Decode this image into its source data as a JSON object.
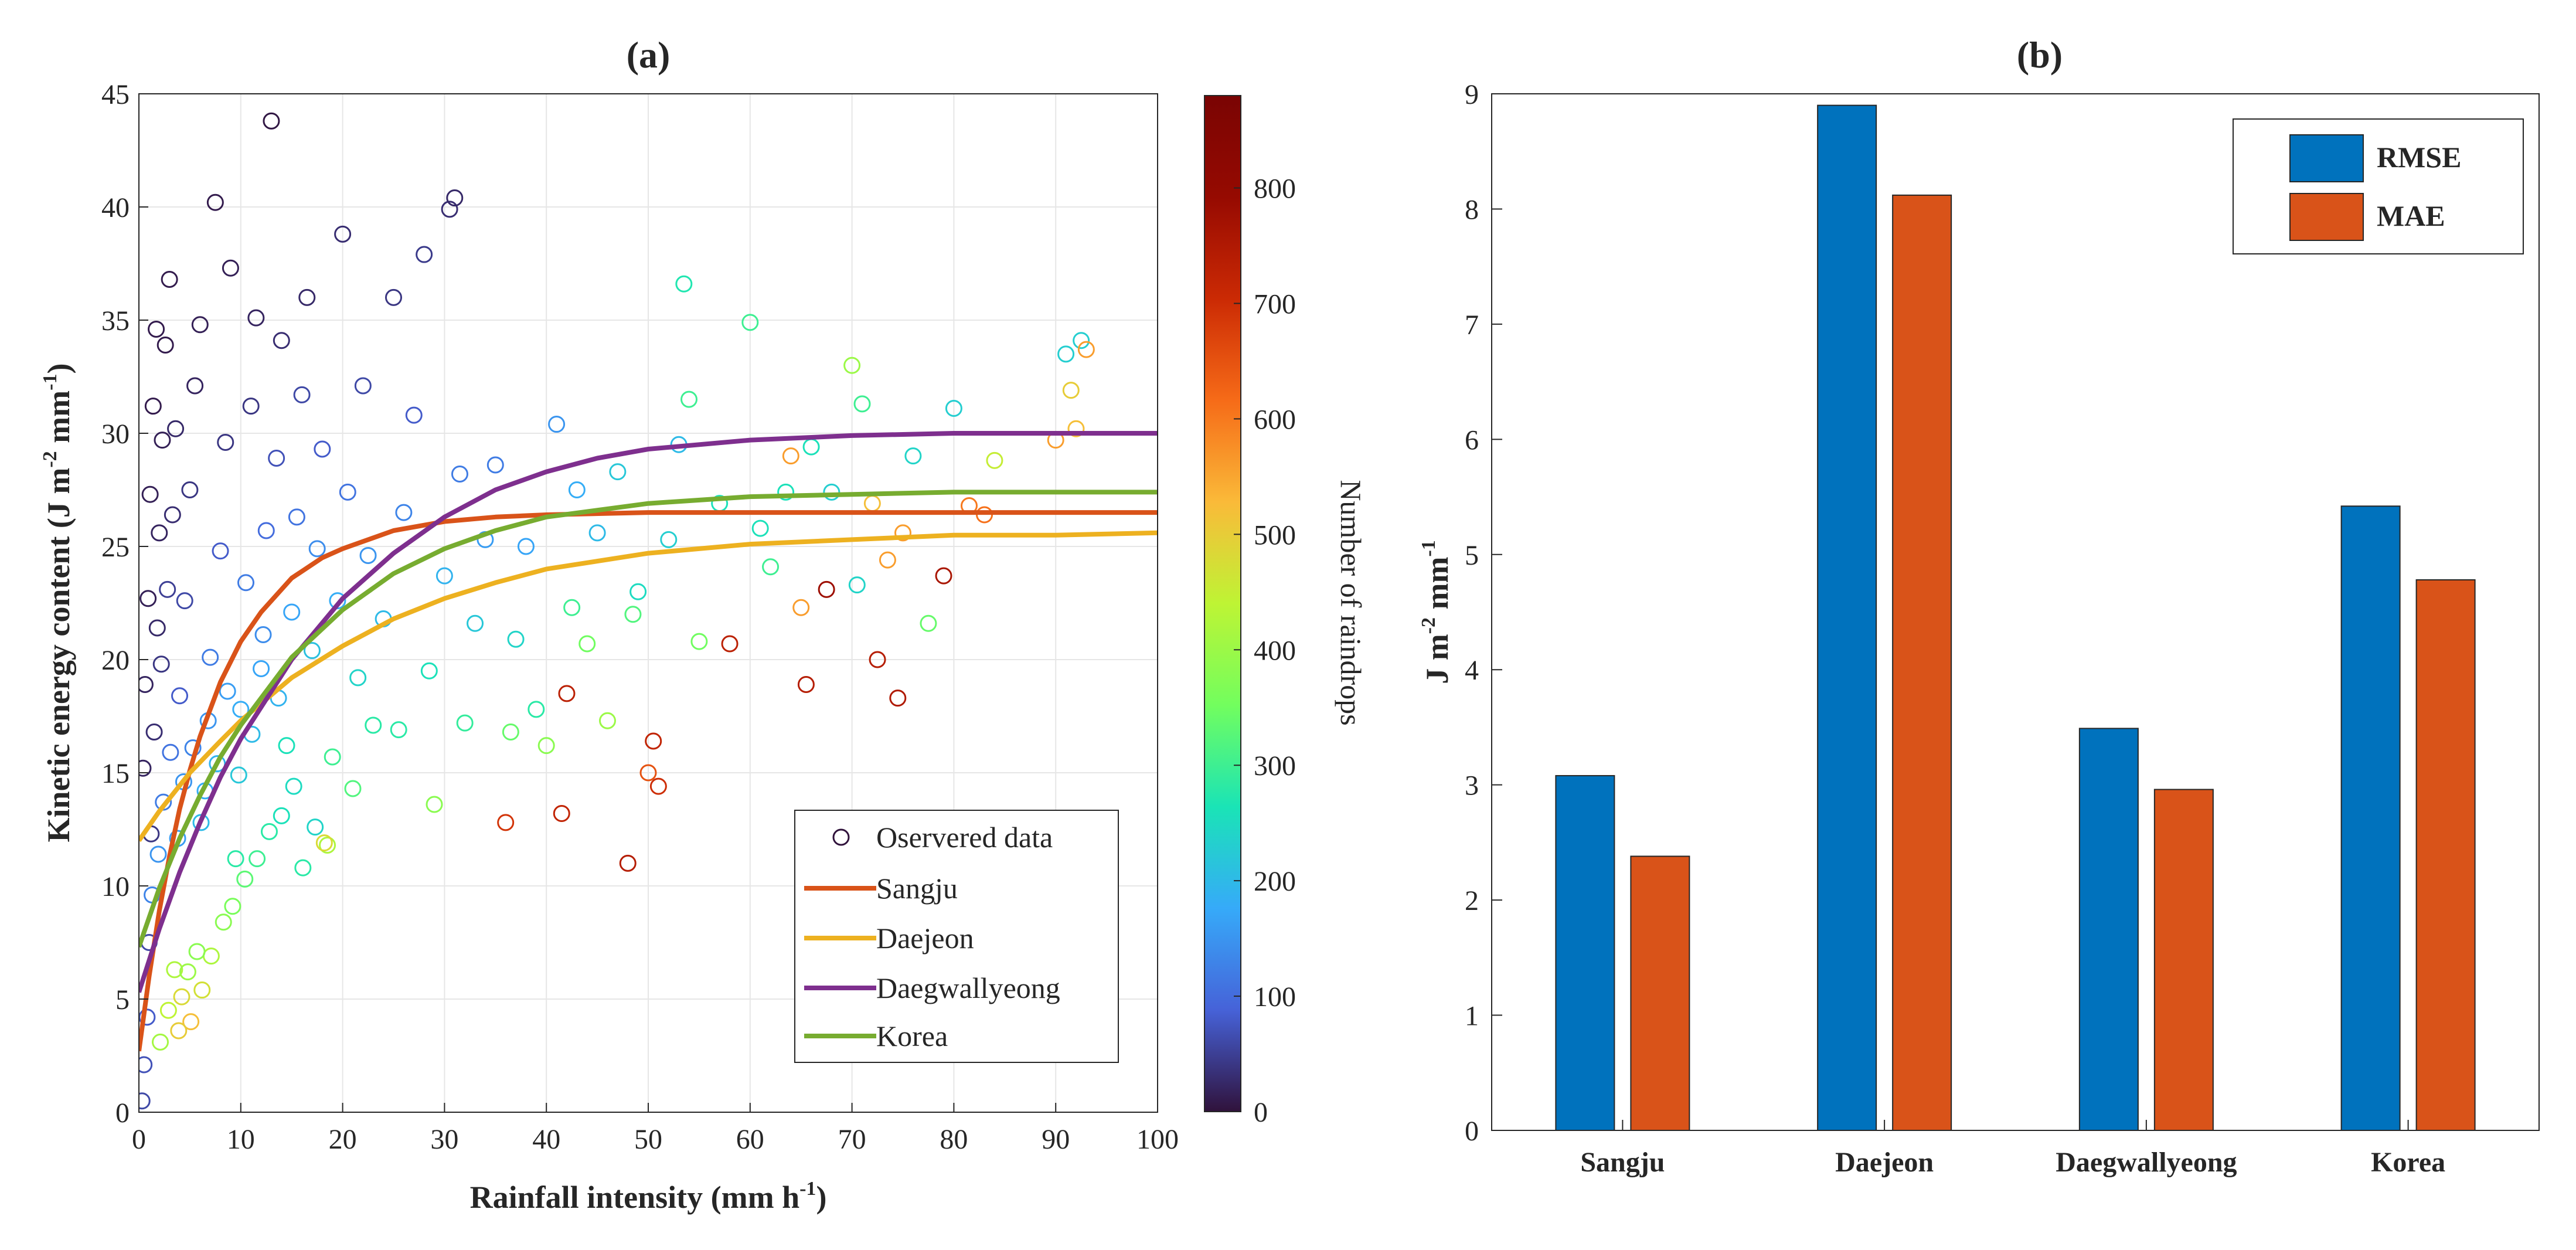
{
  "chart_data": [
    {
      "panel": "(a)",
      "type": "scatter",
      "title": "(a)",
      "xlabel": "Rainfall intensity  (mm h",
      "xlabel_sup": "-1",
      "xlabel_end": ")",
      "ylabel_parts": {
        "base": "Kinetic energy content (J m",
        "sup1": "-2",
        "mid": " mm",
        "sup2": "-1",
        "end": ")"
      },
      "xlim": [
        0,
        100
      ],
      "ylim": [
        0,
        45
      ],
      "xticks": [
        0,
        10,
        20,
        30,
        40,
        50,
        60,
        70,
        80,
        90,
        100
      ],
      "yticks": [
        0,
        5,
        10,
        15,
        20,
        25,
        30,
        35,
        40,
        45
      ],
      "grid": true,
      "legend_position": "bottom-right",
      "scatter": {
        "name": "Oservered data",
        "marker": "open-circle",
        "color_by": "Number of raindrops",
        "points": [
          [
            0.3,
            0.5,
            60
          ],
          [
            0.5,
            2.1,
            70
          ],
          [
            0.8,
            4.2,
            80
          ],
          [
            1.0,
            7.5,
            60
          ],
          [
            1.2,
            12.3,
            40
          ],
          [
            1.5,
            16.8,
            30
          ],
          [
            1.8,
            21.4,
            25
          ],
          [
            2.0,
            25.6,
            20
          ],
          [
            2.3,
            29.7,
            15
          ],
          [
            2.6,
            33.9,
            10
          ],
          [
            3.0,
            36.8,
            10
          ],
          [
            0.4,
            15.2,
            20
          ],
          [
            0.6,
            18.9,
            20
          ],
          [
            0.9,
            22.7,
            15
          ],
          [
            1.1,
            27.3,
            15
          ],
          [
            1.4,
            31.2,
            10
          ],
          [
            1.7,
            34.6,
            10
          ],
          [
            2.2,
            19.8,
            40
          ],
          [
            2.8,
            23.1,
            50
          ],
          [
            3.3,
            26.4,
            30
          ],
          [
            3.6,
            30.2,
            25
          ],
          [
            4.0,
            18.4,
            80
          ],
          [
            4.5,
            22.6,
            60
          ],
          [
            5.0,
            27.5,
            40
          ],
          [
            5.5,
            32.1,
            20
          ],
          [
            6.0,
            34.8,
            15
          ],
          [
            6.5,
            14.2,
            180
          ],
          [
            7.0,
            20.1,
            120
          ],
          [
            7.5,
            40.2,
            10
          ],
          [
            8.0,
            24.8,
            80
          ],
          [
            8.5,
            29.6,
            40
          ],
          [
            9.0,
            37.3,
            15
          ],
          [
            9.5,
            11.2,
            280
          ],
          [
            10.0,
            17.8,
            180
          ],
          [
            10.5,
            23.4,
            120
          ],
          [
            11.0,
            31.2,
            40
          ],
          [
            11.5,
            35.1,
            20
          ],
          [
            12.0,
            19.6,
            170
          ],
          [
            12.5,
            25.7,
            100
          ],
          [
            13.0,
            43.8,
            5
          ],
          [
            13.5,
            28.9,
            70
          ],
          [
            14.0,
            34.1,
            30
          ],
          [
            14.5,
            16.2,
            260
          ],
          [
            15.0,
            22.1,
            170
          ],
          [
            15.5,
            26.3,
            110
          ],
          [
            16.0,
            31.7,
            60
          ],
          [
            16.5,
            36.0,
            25
          ],
          [
            17.0,
            20.4,
            210
          ],
          [
            17.5,
            24.9,
            140
          ],
          [
            18.0,
            29.3,
            80
          ],
          [
            18.5,
            11.8,
            420
          ],
          [
            19.0,
            15.7,
            300
          ],
          [
            19.5,
            22.6,
            180
          ],
          [
            20.0,
            38.8,
            30
          ],
          [
            20.5,
            27.4,
            110
          ],
          [
            21.0,
            14.3,
            320
          ],
          [
            21.5,
            19.2,
            240
          ],
          [
            22.0,
            32.1,
            60
          ],
          [
            22.5,
            24.6,
            150
          ],
          [
            23.0,
            17.1,
            280
          ],
          [
            24.0,
            21.8,
            200
          ],
          [
            25.0,
            36.0,
            40
          ],
          [
            25.5,
            16.9,
            280
          ],
          [
            26.0,
            26.5,
            130
          ],
          [
            27.0,
            30.8,
            80
          ],
          [
            28.0,
            37.9,
            45
          ],
          [
            28.5,
            19.5,
            260
          ],
          [
            29.0,
            13.6,
            380
          ],
          [
            30.0,
            23.7,
            190
          ],
          [
            30.5,
            39.9,
            30
          ],
          [
            31.0,
            40.4,
            25
          ],
          [
            31.5,
            28.2,
            120
          ],
          [
            32.0,
            17.2,
            290
          ],
          [
            33.0,
            21.6,
            220
          ],
          [
            34.0,
            25.3,
            160
          ],
          [
            35.0,
            28.6,
            120
          ],
          [
            36.0,
            12.8,
            690
          ],
          [
            36.5,
            16.8,
            340
          ],
          [
            37.0,
            20.9,
            240
          ],
          [
            38.0,
            25.0,
            170
          ],
          [
            39.0,
            17.8,
            280
          ],
          [
            40.0,
            16.2,
            380
          ],
          [
            41.0,
            30.4,
            150
          ],
          [
            41.5,
            13.2,
            720
          ],
          [
            42.0,
            18.5,
            730
          ],
          [
            42.5,
            22.3,
            300
          ],
          [
            43.0,
            27.5,
            180
          ],
          [
            44.0,
            20.7,
            350
          ],
          [
            45.0,
            25.6,
            200
          ],
          [
            46.0,
            17.3,
            400
          ],
          [
            47.0,
            28.3,
            220
          ],
          [
            48.0,
            11.0,
            740
          ],
          [
            48.5,
            22.0,
            320
          ],
          [
            49.0,
            23.0,
            250
          ],
          [
            50.0,
            15.0,
            650
          ],
          [
            50.5,
            16.4,
            720
          ],
          [
            51.0,
            14.4,
            700
          ],
          [
            52.0,
            25.3,
            230
          ],
          [
            53.0,
            29.5,
            200
          ],
          [
            53.5,
            36.6,
            270
          ],
          [
            54.0,
            31.5,
            300
          ],
          [
            55.0,
            20.8,
            350
          ],
          [
            57.0,
            26.9,
            260
          ],
          [
            58.0,
            20.7,
            730
          ],
          [
            60.0,
            34.9,
            300
          ],
          [
            61.0,
            25.8,
            260
          ],
          [
            62.0,
            24.1,
            300
          ],
          [
            63.5,
            27.4,
            260
          ],
          [
            64.0,
            29.0,
            560
          ],
          [
            65.0,
            22.3,
            560
          ],
          [
            65.5,
            18.9,
            740
          ],
          [
            66.0,
            29.4,
            260
          ],
          [
            67.5,
            23.1,
            780
          ],
          [
            68.0,
            27.4,
            230
          ],
          [
            70.0,
            33.0,
            400
          ],
          [
            70.5,
            23.3,
            240
          ],
          [
            71.0,
            31.3,
            300
          ],
          [
            72.0,
            26.9,
            520
          ],
          [
            72.5,
            20.0,
            740
          ],
          [
            73.5,
            24.4,
            560
          ],
          [
            74.5,
            18.3,
            750
          ],
          [
            75.0,
            25.6,
            560
          ],
          [
            76.0,
            29.0,
            240
          ],
          [
            77.5,
            21.6,
            340
          ],
          [
            79.0,
            23.7,
            760
          ],
          [
            80.0,
            31.1,
            230
          ],
          [
            81.5,
            26.8,
            600
          ],
          [
            83.0,
            26.4,
            610
          ],
          [
            84.0,
            28.8,
            450
          ],
          [
            90.0,
            29.7,
            560
          ],
          [
            91.0,
            33.5,
            230
          ],
          [
            91.5,
            31.9,
            500
          ],
          [
            92.0,
            30.2,
            520
          ],
          [
            92.5,
            34.1,
            230
          ],
          [
            93.0,
            33.7,
            560
          ],
          [
            3.5,
            6.3,
            420
          ],
          [
            4.2,
            5.1,
            480
          ],
          [
            5.1,
            4.0,
            520
          ],
          [
            6.2,
            5.4,
            470
          ],
          [
            7.1,
            6.9,
            420
          ],
          [
            8.3,
            8.4,
            380
          ],
          [
            9.2,
            9.1,
            360
          ],
          [
            10.4,
            10.3,
            330
          ],
          [
            11.6,
            11.2,
            300
          ],
          [
            12.8,
            12.4,
            280
          ],
          [
            14.0,
            13.1,
            260
          ],
          [
            15.2,
            14.4,
            250
          ],
          [
            16.1,
            10.8,
            280
          ],
          [
            17.3,
            12.6,
            240
          ],
          [
            18.2,
            11.9,
            480
          ],
          [
            2.1,
            3.1,
            410
          ],
          [
            2.9,
            4.5,
            440
          ],
          [
            3.9,
            3.6,
            500
          ],
          [
            4.8,
            6.2,
            400
          ],
          [
            5.7,
            7.1,
            380
          ],
          [
            1.3,
            9.6,
            130
          ],
          [
            1.9,
            11.4,
            150
          ],
          [
            2.4,
            13.7,
            120
          ],
          [
            3.1,
            15.9,
            110
          ],
          [
            3.8,
            12.1,
            160
          ],
          [
            4.4,
            14.6,
            150
          ],
          [
            5.3,
            16.1,
            130
          ],
          [
            6.1,
            12.8,
            200
          ],
          [
            6.8,
            17.3,
            150
          ],
          [
            7.7,
            15.4,
            190
          ],
          [
            8.7,
            18.6,
            160
          ],
          [
            9.8,
            14.9,
            220
          ],
          [
            11.1,
            16.7,
            200
          ],
          [
            12.2,
            21.1,
            140
          ],
          [
            13.7,
            18.3,
            190
          ]
        ]
      },
      "series": [
        {
          "name": "Sangju",
          "color": "#D95319",
          "x": [
            0,
            1,
            2,
            3,
            4,
            5,
            6,
            8,
            10,
            12,
            15,
            18,
            20,
            25,
            30,
            35,
            40,
            50,
            60,
            70,
            80,
            90,
            100
          ],
          "y": [
            2.7,
            6.0,
            8.9,
            11.3,
            13.4,
            15.1,
            16.6,
            19.0,
            20.8,
            22.1,
            23.6,
            24.5,
            24.9,
            25.7,
            26.1,
            26.3,
            26.4,
            26.5,
            26.5,
            26.5,
            26.5,
            26.5,
            26.5
          ]
        },
        {
          "name": "Daejeon",
          "color": "#EDB120",
          "x": [
            0,
            2,
            5,
            8,
            10,
            15,
            20,
            25,
            30,
            35,
            40,
            50,
            60,
            70,
            80,
            90,
            100
          ],
          "y": [
            12.0,
            13.3,
            15.0,
            16.4,
            17.3,
            19.2,
            20.6,
            21.8,
            22.7,
            23.4,
            24.0,
            24.7,
            25.1,
            25.3,
            25.5,
            25.5,
            25.6
          ]
        },
        {
          "name": "Daegwallyeong",
          "color": "#7E2F8E",
          "x": [
            0,
            2,
            4,
            6,
            8,
            10,
            15,
            20,
            25,
            30,
            35,
            40,
            45,
            50,
            60,
            70,
            80,
            90,
            100
          ],
          "y": [
            5.3,
            8.1,
            10.6,
            12.8,
            14.8,
            16.5,
            20.0,
            22.7,
            24.7,
            26.3,
            27.5,
            28.3,
            28.9,
            29.3,
            29.7,
            29.9,
            30.0,
            30.0,
            30.0
          ]
        },
        {
          "name": "Korea",
          "color": "#77AC30",
          "x": [
            0,
            2,
            4,
            6,
            8,
            10,
            15,
            20,
            25,
            30,
            35,
            40,
            50,
            60,
            70,
            80,
            90,
            100
          ],
          "y": [
            7.3,
            9.9,
            12.1,
            14.0,
            15.7,
            17.1,
            20.1,
            22.2,
            23.8,
            24.9,
            25.7,
            26.3,
            26.9,
            27.2,
            27.3,
            27.4,
            27.4,
            27.4
          ]
        }
      ],
      "colorbar": {
        "label": "Number of raindrops",
        "range": [
          0,
          880
        ],
        "ticks": [
          0,
          100,
          200,
          300,
          400,
          500,
          600,
          700,
          800
        ],
        "colormap": "turbo"
      }
    },
    {
      "panel": "(b)",
      "type": "bar",
      "title": "(b)",
      "xlabel": "",
      "ylabel_parts": {
        "base": "J m",
        "sup1": "-2",
        "mid": " mm",
        "sup2": "-1"
      },
      "categories": [
        "Sangju",
        "Daejeon",
        "Daegwallyeong",
        "Korea"
      ],
      "ylim": [
        0,
        9
      ],
      "yticks": [
        0,
        1,
        2,
        3,
        4,
        5,
        6,
        7,
        8,
        9
      ],
      "grid": false,
      "legend_position": "top-right",
      "series": [
        {
          "name": "RMSE",
          "color": "#0072BD",
          "values": [
            3.08,
            8.9,
            3.49,
            5.42
          ]
        },
        {
          "name": "MAE",
          "color": "#D95319",
          "values": [
            2.38,
            8.12,
            2.96,
            4.78
          ]
        }
      ]
    }
  ]
}
